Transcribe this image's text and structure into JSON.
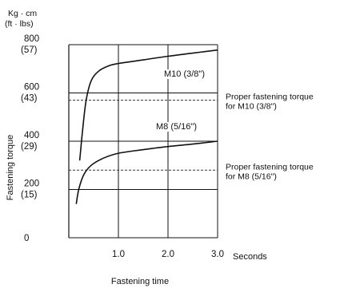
{
  "chart_data": {
    "type": "line",
    "y_unit_label": "Kg · cm",
    "y_unit_label_alt": "(ft · lbs)",
    "ylabel": "Fastening torque",
    "xlabel": "Fastening time",
    "x_unit": "Seconds",
    "xlim": [
      0,
      3.0
    ],
    "ylim": [
      0,
      800
    ],
    "y_ticks": [
      {
        "value": 0,
        "label": "0",
        "alt": ""
      },
      {
        "value": 200,
        "label": "200",
        "alt": "(15)"
      },
      {
        "value": 400,
        "label": "400",
        "alt": "(29)"
      },
      {
        "value": 600,
        "label": "600",
        "alt": "(43)"
      },
      {
        "value": 800,
        "label": "800",
        "alt": "(57)"
      }
    ],
    "x_ticks": [
      {
        "value": 1.0,
        "label": "1.0"
      },
      {
        "value": 2.0,
        "label": "2.0"
      },
      {
        "value": 3.0,
        "label": "3.0"
      }
    ],
    "grid": "horizontal lines at each tick",
    "series": [
      {
        "name": "M10 (3/8\")",
        "color": "#111111",
        "points": [
          [
            0.22,
            320
          ],
          [
            0.28,
            450
          ],
          [
            0.35,
            570
          ],
          [
            0.45,
            650
          ],
          [
            0.6,
            690
          ],
          [
            0.8,
            712
          ],
          [
            1.0,
            722
          ],
          [
            1.5,
            737
          ],
          [
            2.0,
            752
          ],
          [
            2.5,
            765
          ],
          [
            3.0,
            778
          ]
        ]
      },
      {
        "name": "M8 (5/16\")",
        "color": "#111111",
        "points": [
          [
            0.15,
            140
          ],
          [
            0.2,
            200
          ],
          [
            0.3,
            260
          ],
          [
            0.45,
            300
          ],
          [
            0.7,
            330
          ],
          [
            1.0,
            350
          ],
          [
            1.5,
            365
          ],
          [
            2.0,
            378
          ],
          [
            2.5,
            388
          ],
          [
            3.0,
            400
          ]
        ]
      }
    ],
    "reference_lines": [
      {
        "value": 570,
        "style": "dashed",
        "label_line1": "Proper fastening torque",
        "label_line2": "for M10 (3/8\")"
      },
      {
        "value": 280,
        "style": "dashed",
        "label_line1": "Proper fastening torque",
        "label_line2": "for M8 (5/16\")"
      }
    ]
  }
}
